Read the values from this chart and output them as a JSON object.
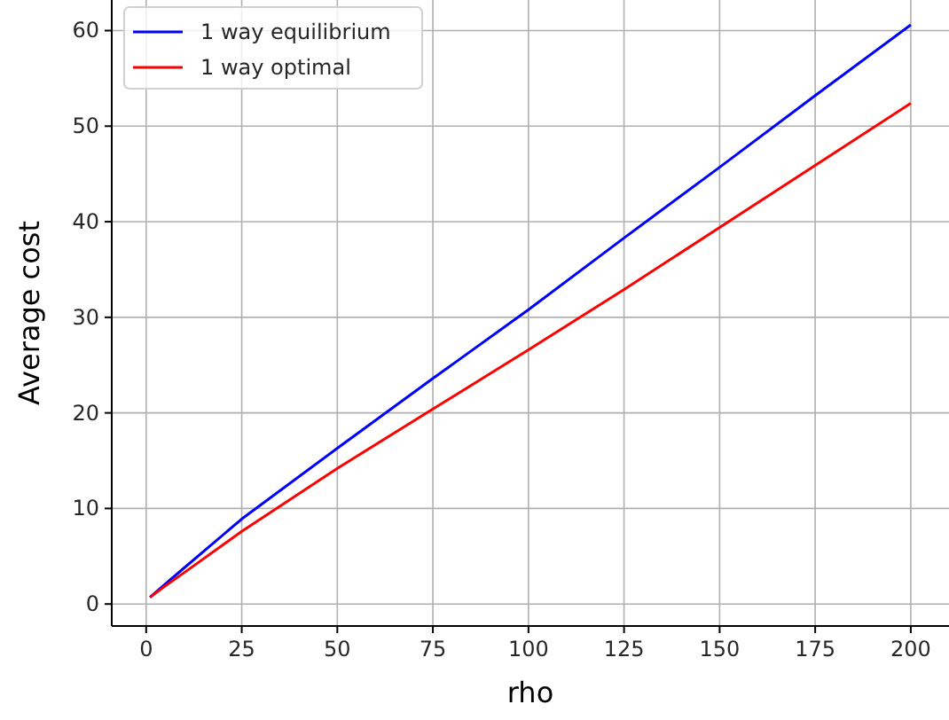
{
  "chart_data": {
    "type": "line",
    "xlabel": "rho",
    "ylabel": "Average cost",
    "xlim": [
      -9,
      210
    ],
    "ylim": [
      -2.3,
      63.2
    ],
    "xticks": [
      0,
      25,
      50,
      75,
      100,
      125,
      150,
      175,
      200
    ],
    "yticks": [
      0,
      10,
      20,
      30,
      40,
      50,
      60
    ],
    "grid": true,
    "legend": "top left",
    "marker": "none",
    "line_style": "solid",
    "x": [
      1,
      5,
      10,
      25,
      50,
      75,
      100,
      125,
      150,
      175,
      200
    ],
    "series": [
      {
        "name": "1 way equilibrium",
        "color": "#0000ff",
        "values": [
          0.7,
          2.1,
          3.8,
          8.9,
          16.3,
          23.6,
          30.8,
          38.3,
          45.7,
          53.2,
          60.6
        ]
      },
      {
        "name": "1 way optimal",
        "color": "#ff0000",
        "values": [
          0.7,
          1.9,
          3.3,
          7.6,
          14.2,
          20.4,
          26.6,
          32.9,
          39.4,
          45.9,
          52.4
        ]
      }
    ]
  }
}
